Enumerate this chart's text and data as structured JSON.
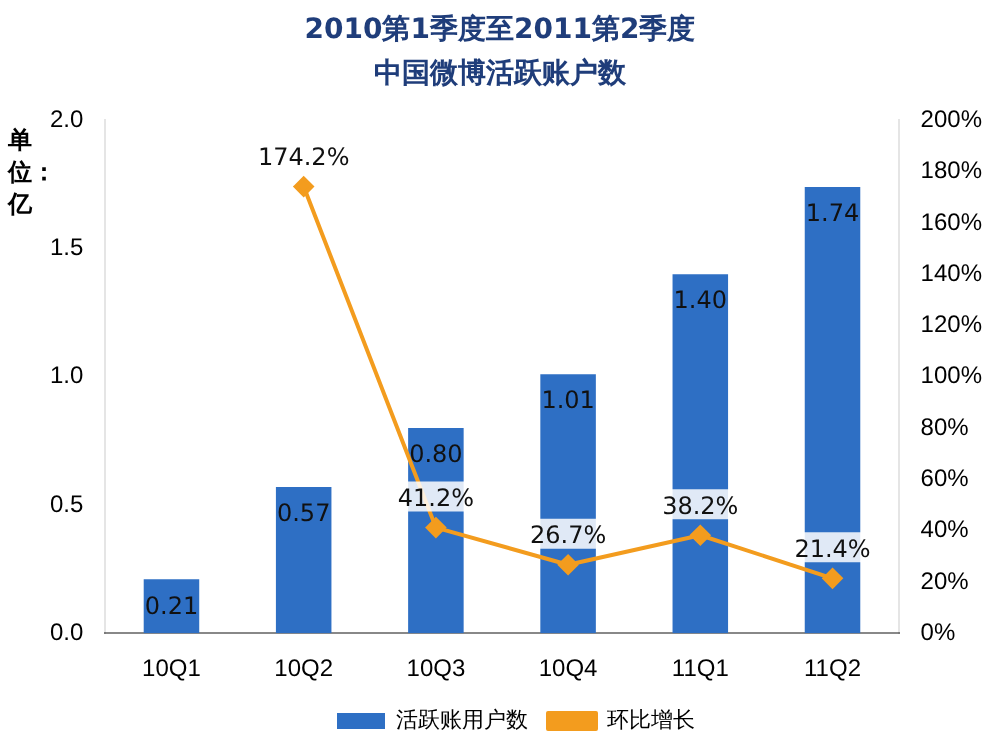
{
  "chart_data": {
    "type": "bar",
    "title": "2010第1季度至2011第2季度",
    "subtitle": "中国微博活跃账户数",
    "ylabel": "单位：亿",
    "categories": [
      "10Q1",
      "10Q2",
      "10Q3",
      "10Q4",
      "11Q1",
      "11Q2"
    ],
    "series": [
      {
        "name": "活跃账用户数",
        "color": "#2e6fc4",
        "values": [
          0.21,
          0.57,
          0.8,
          1.01,
          1.4,
          1.74
        ],
        "value_labels": [
          "0.21",
          "0.57",
          "0.80",
          "1.01",
          "1.40",
          "1.74"
        ]
      },
      {
        "name": "环比增长",
        "type": "line",
        "axis": "y2",
        "color": "#f39c1e",
        "marker": "diamond",
        "values": [
          null,
          174.2,
          41.2,
          26.7,
          38.2,
          21.4
        ],
        "value_labels": [
          null,
          "174.2%",
          "41.2%",
          "26.7%",
          "38.2%",
          "21.4%"
        ]
      }
    ],
    "ylim": [
      0,
      2
    ],
    "yticks": [
      {
        "value": 0,
        "label": "0.0"
      },
      {
        "value": 0.5,
        "label": "0.5"
      },
      {
        "value": 1,
        "label": "1.0"
      },
      {
        "value": 1.5,
        "label": "1.5"
      },
      {
        "value": 2,
        "label": "2.0"
      }
    ],
    "y2lim": [
      0,
      200
    ],
    "y2ticks": [
      {
        "value": 0,
        "label": "0%"
      },
      {
        "value": 20,
        "label": "20%"
      },
      {
        "value": 40,
        "label": "40%"
      },
      {
        "value": 60,
        "label": "60%"
      },
      {
        "value": 80,
        "label": "80%"
      },
      {
        "value": 100,
        "label": "100%"
      },
      {
        "value": 120,
        "label": "120%"
      },
      {
        "value": 140,
        "label": "140%"
      },
      {
        "value": 160,
        "label": "160%"
      },
      {
        "value": 180,
        "label": "180%"
      },
      {
        "value": 200,
        "label": "200%"
      }
    ],
    "grid": false,
    "legend": "bottom"
  }
}
